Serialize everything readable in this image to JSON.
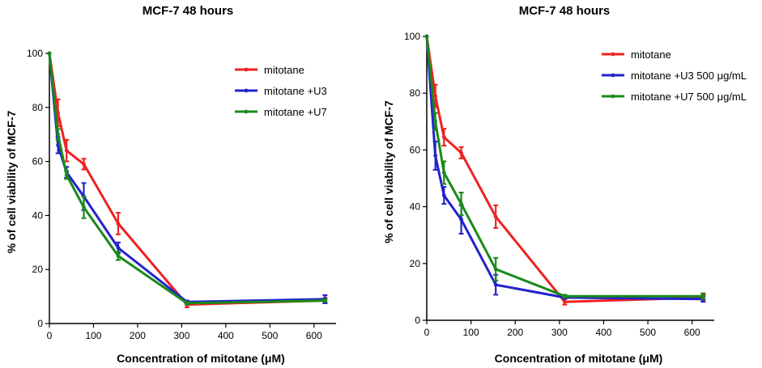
{
  "chart_data": [
    {
      "type": "line",
      "title": "MCF-7 48 hours",
      "xlabel": "Concentration of mitotane (μM)",
      "ylabel": "% of cell viability of MCF-7",
      "xlim": [
        0,
        650
      ],
      "ylim": [
        0,
        100
      ],
      "xticks": [
        0,
        100,
        200,
        300,
        400,
        500,
        600
      ],
      "yticks": [
        0,
        20,
        40,
        60,
        80,
        100
      ],
      "legend_position": "top-right",
      "x": [
        0,
        19.5,
        39,
        78,
        156,
        312,
        625
      ],
      "series": [
        {
          "name": "mitotane",
          "color": "#ee2222",
          "values": [
            100,
            78,
            64,
            59,
            37,
            7,
            8.5
          ],
          "errors": [
            0,
            5,
            4,
            2,
            4,
            1,
            1
          ]
        },
        {
          "name": "mitotane +U3",
          "color": "#2222cc",
          "values": [
            100,
            66,
            56,
            47,
            28,
            8,
            9
          ],
          "errors": [
            0,
            3,
            2,
            5,
            2,
            0.5,
            1.5
          ]
        },
        {
          "name": "mitotane +U7",
          "color": "#1a8a1a",
          "values": [
            100,
            70,
            55,
            43,
            25,
            7.5,
            8.5
          ],
          "errors": [
            0,
            2,
            1.5,
            4,
            1.5,
            0.5,
            0.5
          ]
        }
      ]
    },
    {
      "type": "line",
      "title": "MCF-7 48 hours",
      "xlabel": "Concentration of mitotane (μM)",
      "ylabel": "% of cell viability of MCF-7",
      "xlim": [
        0,
        650
      ],
      "ylim": [
        0,
        100
      ],
      "xticks": [
        0,
        100,
        200,
        300,
        400,
        500,
        600
      ],
      "yticks": [
        0,
        20,
        40,
        60,
        80,
        100
      ],
      "legend_position": "top-right",
      "x": [
        0,
        19.5,
        39,
        78,
        156,
        312,
        625
      ],
      "series": [
        {
          "name": "mitotane",
          "color": "#ee2222",
          "values": [
            100,
            79,
            64.5,
            59,
            36.5,
            6.5,
            8
          ],
          "errors": [
            0,
            4,
            3,
            2,
            4,
            1,
            1
          ]
        },
        {
          "name": "mitotane +U3 500 μg/mL",
          "color": "#2222cc",
          "values": [
            100,
            58,
            44,
            35.5,
            12.5,
            8,
            7.5
          ],
          "errors": [
            0,
            5,
            3,
            5,
            3.5,
            0.5,
            1
          ]
        },
        {
          "name": "mitotane +U7 500 μg/mL",
          "color": "#1a8a1a",
          "values": [
            100,
            70,
            52,
            41,
            18,
            8.5,
            8.5
          ],
          "errors": [
            0,
            3,
            4,
            4,
            4,
            0.5,
            1
          ]
        }
      ]
    }
  ]
}
